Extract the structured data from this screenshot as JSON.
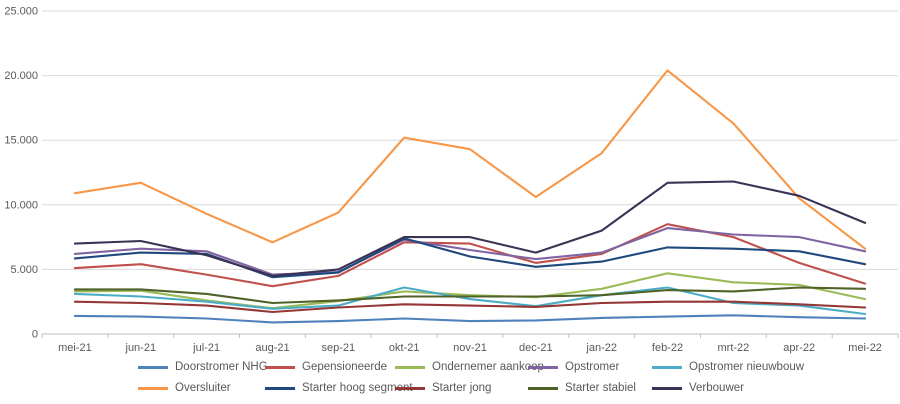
{
  "chart_data": {
    "type": "line",
    "title": "",
    "xlabel": "",
    "ylabel": "",
    "categories": [
      "mei-21",
      "jun-21",
      "jul-21",
      "aug-21",
      "sep-21",
      "okt-21",
      "nov-21",
      "dec-21",
      "jan-22",
      "feb-22",
      "mrt-22",
      "apr-22",
      "mei-22"
    ],
    "series": [
      {
        "name": "Doorstromer NHG",
        "color": "#4F81BD",
        "values": [
          1400,
          1350,
          1200,
          900,
          1000,
          1200,
          1000,
          1050,
          1250,
          1350,
          1450,
          1300,
          1200
        ]
      },
      {
        "name": "Gepensioneerde",
        "color": "#C0504D",
        "values": [
          5100,
          5400,
          4600,
          3700,
          4500,
          7100,
          7000,
          5500,
          6200,
          8500,
          7500,
          5500,
          3900
        ]
      },
      {
        "name": "Ondernemer aankoop",
        "color": "#9BBB59",
        "values": [
          3300,
          3350,
          2600,
          2000,
          2550,
          3300,
          3000,
          2850,
          3500,
          4700,
          4000,
          3800,
          2700
        ]
      },
      {
        "name": "Opstromer",
        "color": "#8064A2",
        "values": [
          6200,
          6600,
          6400,
          4600,
          4800,
          7300,
          6500,
          5800,
          6300,
          8200,
          7700,
          7500,
          6400
        ]
      },
      {
        "name": "Opstromer nieuwbouw",
        "color": "#4BACC6",
        "values": [
          3100,
          2900,
          2500,
          1950,
          2200,
          3600,
          2700,
          2150,
          3000,
          3600,
          2400,
          2200,
          1550
        ]
      },
      {
        "name": "Oversluiter",
        "color": "#F79646",
        "values": [
          10900,
          11700,
          9300,
          7100,
          9400,
          15200,
          14300,
          10600,
          14000,
          20400,
          16300,
          10500,
          6600
        ]
      },
      {
        "name": "Starter hoog segment",
        "color": "#1F497D",
        "values": [
          5850,
          6300,
          6200,
          4400,
          4750,
          7400,
          6000,
          5200,
          5600,
          6700,
          6600,
          6400,
          5400
        ]
      },
      {
        "name": "Starter jong",
        "color": "#943634",
        "values": [
          2500,
          2400,
          2200,
          1700,
          2050,
          2300,
          2200,
          2100,
          2400,
          2500,
          2500,
          2300,
          2050
        ]
      },
      {
        "name": "Starter stabiel",
        "color": "#4F6228",
        "values": [
          3450,
          3450,
          3100,
          2400,
          2600,
          2900,
          2900,
          2900,
          3000,
          3400,
          3300,
          3600,
          3500
        ]
      },
      {
        "name": "Verbouwer",
        "color": "#3A3356",
        "values": [
          7000,
          7200,
          6100,
          4500,
          5000,
          7500,
          7500,
          6300,
          8000,
          11700,
          11800,
          10700,
          8600
        ]
      }
    ],
    "ylim": [
      0,
      25000
    ],
    "ytick_values": [
      0,
      5000,
      10000,
      15000,
      20000,
      25000
    ],
    "ytick_labels": [
      "0",
      "5.000",
      "10.000",
      "15.000",
      "20.000",
      "25.000"
    ],
    "grid": true,
    "legend_position": "bottom",
    "legend_rows": 2,
    "colors": {
      "gridline": "#D9D9D9",
      "axis_line": "#BFBFBF",
      "axis_text": "#595959",
      "background": "#FFFFFF"
    }
  }
}
